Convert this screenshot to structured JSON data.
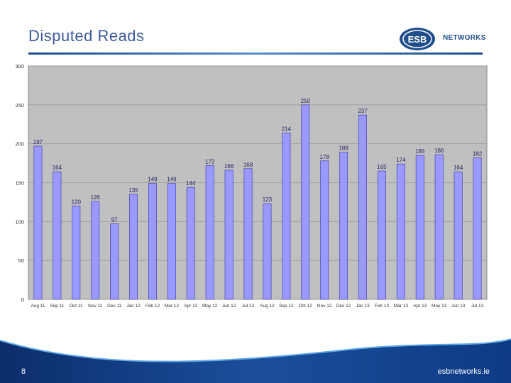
{
  "slide": {
    "title": "Disputed Reads",
    "logo_text": "NETWORKS",
    "page_number": "8",
    "site": "esbnetworks.ie"
  },
  "colors": {
    "bar": "#9999ff",
    "plot_bg": "#c0c0c0",
    "title": "#3a5a9c",
    "brand": "#1f4e8c"
  },
  "chart_data": {
    "type": "bar",
    "categories": [
      "Aug 11",
      "Sep 11",
      "Oct 11",
      "Nov 11",
      "Dec 11",
      "Jan 12",
      "Feb 12",
      "Mar 12",
      "Apr 12",
      "May 12",
      "Jun 12",
      "Jul 12",
      "Aug 12",
      "Sep 12",
      "Oct 12",
      "Nov 12",
      "Dec 12",
      "Jan 13",
      "Feb 13",
      "Mar 13",
      "Apr 13",
      "May 13",
      "Jun 13",
      "Jul 13"
    ],
    "values": [
      197,
      164,
      120,
      126,
      97,
      135,
      149,
      149,
      144,
      172,
      166,
      168,
      123,
      214,
      250,
      178,
      189,
      237,
      165,
      174,
      185,
      186,
      164,
      182
    ],
    "ylim": [
      0,
      300
    ],
    "yticks": [
      0,
      50,
      100,
      150,
      200,
      250,
      300
    ],
    "grid": true,
    "data_labels": true
  }
}
